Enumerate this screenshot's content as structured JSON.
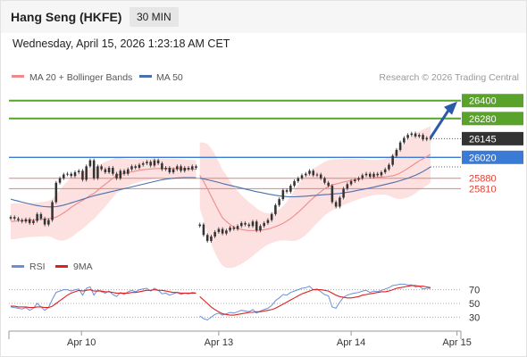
{
  "header": {
    "title": "Hang Seng (HKFE)",
    "timeframe": "30 MIN",
    "datetime": "Wednesday, April 15, 2026 1:23:18 AM CET"
  },
  "legend": {
    "bollinger": "MA 20 + Bollinger Bands",
    "ma50": "MA 50",
    "credit": "Research © 2026 Trading Central",
    "rsi": "RSI",
    "rsi_ma": "9MA"
  },
  "colors": {
    "resistance": "#5aa32a",
    "support": "#e8807a",
    "pivot": "#3a7bd5",
    "last": "#333333",
    "candle": "#333333",
    "bands": "#fcd5d5",
    "ma20": "#f08a8a",
    "ma50": "#4a6fae",
    "rsi_line": "#6a8fd8",
    "rsi_ma": "#e02020",
    "arrow": "#2a5aa8"
  },
  "chart_data": {
    "type": "candlestick",
    "x_ticks": [
      "Apr 10",
      "Apr 13",
      "Apr 14",
      "Apr 15"
    ],
    "price_levels": [
      {
        "label": "26400",
        "value": 26400,
        "kind": "resistance"
      },
      {
        "label": "26280",
        "value": 26280,
        "kind": "resistance"
      },
      {
        "label": "26145",
        "value": 26145,
        "kind": "last"
      },
      {
        "label": "26020",
        "value": 26020,
        "kind": "pivot"
      },
      {
        "label": "25880",
        "value": 25880,
        "kind": "support"
      },
      {
        "label": "25810",
        "value": 25810,
        "kind": "support"
      }
    ],
    "close": [
      25620,
      25610,
      25600,
      25590,
      25605,
      25580,
      25595,
      25640,
      25610,
      25570,
      25600,
      25720,
      25850,
      25880,
      25905,
      25910,
      25895,
      25920,
      25930,
      25870,
      25960,
      26000,
      25880,
      25960,
      25940,
      25920,
      25950,
      25910,
      25880,
      25930,
      25910,
      25940,
      25960,
      25950,
      25970,
      25980,
      25990,
      25965,
      26000,
      25980,
      25940,
      25950,
      25920,
      25940,
      25960,
      25930,
      25950,
      25940,
      25960,
      25950,
      25570,
      25500,
      25460,
      25490,
      25520,
      25540,
      25510,
      25530,
      25550,
      25540,
      25560,
      25580,
      25570,
      25560,
      25590,
      25530,
      25560,
      25580,
      25600,
      25640,
      25700,
      25740,
      25800,
      25790,
      25830,
      25860,
      25880,
      25900,
      25910,
      25930,
      25900,
      25905,
      25880,
      25850,
      25830,
      25720,
      25690,
      25750,
      25810,
      25840,
      25860,
      25870,
      25880,
      25900,
      25910,
      25890,
      25910,
      25900,
      25920,
      25940,
      25970,
      26030,
      26070,
      26120,
      26150,
      26170,
      26180,
      26160,
      26170,
      26140,
      26150,
      26145
    ],
    "ma20": [
      25590,
      25592,
      25594,
      25596,
      25598,
      25600,
      25601,
      25603,
      25605,
      25607,
      25609,
      25612,
      25620,
      25632,
      25648,
      25665,
      25685,
      25702,
      25718,
      25732,
      25748,
      25765,
      25778,
      25800,
      25820,
      25840,
      25860,
      25880,
      25900,
      25906,
      25912,
      25918,
      25923,
      25928,
      25932,
      25937,
      25940,
      25942,
      25944,
      25945,
      25945,
      25945,
      25945,
      25945,
      25945,
      25944,
      25943,
      25942,
      25941,
      25940,
      25900,
      25860,
      25810,
      25760,
      25710,
      25660,
      25615,
      25590,
      25570,
      25552,
      25543,
      25537,
      25532,
      25530,
      25530,
      25530,
      25532,
      25535,
      25540,
      25547,
      25556,
      25566,
      25578,
      25593,
      25610,
      25630,
      25652,
      25675,
      25700,
      25725,
      25748,
      25770,
      25790,
      25810,
      25825,
      25835,
      25842,
      25848,
      25855,
      25860,
      25866,
      25870,
      25874,
      25878,
      25880,
      25882,
      25884,
      25886,
      25888,
      25890,
      25893,
      25897,
      25904,
      25916,
      25930,
      25946,
      25962,
      25980,
      25996,
      26010,
      26025,
      26040
    ],
    "ma50": [
      25740,
      25733,
      25727,
      25720,
      25714,
      25708,
      25702,
      25697,
      25693,
      25690,
      25688,
      25688,
      25690,
      25694,
      25700,
      25707,
      25715,
      25723,
      25731,
      25739,
      25747,
      25755,
      25762,
      25769,
      25775,
      25781,
      25787,
      25793,
      25799,
      25805,
      25810,
      25816,
      25822,
      25828,
      25834,
      25840,
      25846,
      25852,
      25858,
      25864,
      25870,
      25874,
      25877,
      25880,
      25882,
      25883,
      25884,
      25884,
      25884,
      25883,
      25880,
      25875,
      25870,
      25864,
      25858,
      25852,
      25845,
      25838,
      25832,
      25826,
      25820,
      25814,
      25808,
      25802,
      25796,
      25790,
      25785,
      25780,
      25775,
      25770,
      25766,
      25762,
      25759,
      25757,
      25756,
      25756,
      25757,
      25758,
      25760,
      25762,
      25764,
      25766,
      25768,
      25770,
      25772,
      25774,
      25776,
      25778,
      25782,
      25786,
      25790,
      25795,
      25800,
      25805,
      25810,
      25815,
      25820,
      25826,
      25832,
      25838,
      25844,
      25850,
      25857,
      25864,
      25872,
      25880,
      25890,
      25900,
      25912,
      25925,
      25940,
      25956
    ],
    "bb_width": [
      120,
      120,
      118,
      116,
      115,
      114,
      114,
      114,
      115,
      116,
      118,
      130,
      150,
      170,
      185,
      195,
      200,
      200,
      195,
      190,
      185,
      178,
      172,
      165,
      158,
      150,
      140,
      130,
      120,
      110,
      100,
      92,
      85,
      80,
      76,
      74,
      72,
      70,
      68,
      66,
      66,
      66,
      66,
      66,
      65,
      64,
      63,
      62,
      61,
      60,
      220,
      260,
      300,
      320,
      330,
      330,
      320,
      310,
      290,
      270,
      250,
      230,
      210,
      190,
      170,
      150,
      130,
      115,
      105,
      100,
      100,
      105,
      115,
      130,
      150,
      170,
      185,
      195,
      200,
      200,
      195,
      190,
      185,
      180,
      175,
      170,
      165,
      160,
      155,
      150,
      145,
      140,
      135,
      130,
      125,
      120,
      118,
      117,
      118,
      120,
      130,
      145,
      160,
      175,
      185,
      195,
      200,
      200,
      198,
      195,
      192,
      190
    ],
    "rsi": [
      45,
      44,
      43,
      42,
      44,
      40,
      43,
      50,
      45,
      40,
      44,
      56,
      66,
      68,
      70,
      70,
      68,
      70,
      71,
      62,
      72,
      74,
      62,
      70,
      67,
      65,
      68,
      63,
      60,
      66,
      63,
      67,
      69,
      67,
      70,
      71,
      72,
      68,
      72,
      69,
      64,
      65,
      62,
      64,
      66,
      63,
      65,
      64,
      66,
      65,
      32,
      28,
      26,
      30,
      34,
      36,
      33,
      35,
      37,
      36,
      38,
      40,
      39,
      38,
      41,
      36,
      39,
      41,
      43,
      47,
      54,
      58,
      63,
      62,
      66,
      68,
      70,
      72,
      73,
      75,
      70,
      71,
      67,
      63,
      61,
      45,
      43,
      52,
      59,
      62,
      64,
      65,
      66,
      68,
      69,
      66,
      68,
      67,
      69,
      71,
      73,
      76,
      77,
      78,
      78,
      77,
      77,
      74,
      75,
      71,
      72,
      72
    ],
    "rsi_ma": [
      46,
      46,
      45,
      45,
      45,
      44,
      44,
      45,
      45,
      44,
      44,
      46,
      50,
      54,
      58,
      62,
      65,
      67,
      69,
      68,
      69,
      70,
      68,
      68,
      68,
      67,
      67,
      66,
      65,
      65,
      65,
      65,
      66,
      66,
      67,
      68,
      69,
      69,
      70,
      69,
      69,
      68,
      67,
      66,
      66,
      65,
      65,
      65,
      65,
      65,
      60,
      55,
      50,
      45,
      41,
      38,
      35,
      34,
      33,
      33,
      34,
      35,
      36,
      37,
      37,
      38,
      38,
      39,
      40,
      41,
      43,
      46,
      49,
      52,
      55,
      58,
      61,
      64,
      66,
      68,
      70,
      70,
      70,
      69,
      68,
      65,
      62,
      60,
      59,
      58,
      58,
      59,
      60,
      62,
      63,
      64,
      65,
      66,
      67,
      67,
      68,
      70,
      72,
      73,
      74,
      75,
      76,
      76,
      75,
      75,
      74,
      73
    ],
    "ylim": [
      25400,
      26500
    ],
    "rsi_levels": [
      70,
      50,
      30
    ],
    "rsi_ylim": [
      15,
      85
    ],
    "projection": {
      "from": 26145,
      "to": 26400
    }
  }
}
